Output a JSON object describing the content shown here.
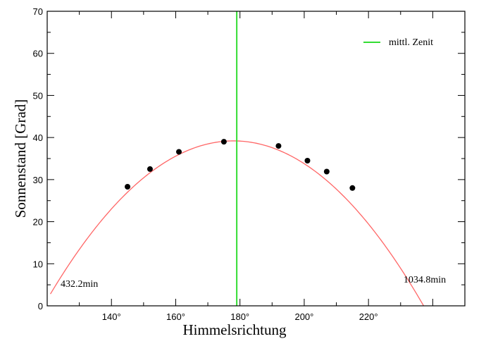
{
  "chart_data": {
    "type": "scatter",
    "xlabel": "Himmelsrichtung",
    "ylabel": "Sonnenstand [Grad]",
    "xlim": [
      120,
      250
    ],
    "ylim": [
      0,
      70
    ],
    "x_ticks": [
      140,
      160,
      180,
      200,
      220
    ],
    "x_tick_labels": [
      "140°",
      "160°",
      "180°",
      "200°",
      "220°"
    ],
    "y_ticks": [
      0,
      10,
      20,
      30,
      40,
      50,
      60,
      70
    ],
    "y_tick_labels": [
      "0",
      "10",
      "20",
      "30",
      "40",
      "50",
      "60",
      "70"
    ],
    "grid": false,
    "legend_position": "top-right",
    "series": [
      {
        "type": "scatter",
        "color": "#000000",
        "x": [
          145,
          152,
          161,
          175,
          192,
          201,
          207,
          215
        ],
        "y": [
          28.3,
          32.5,
          36.6,
          39.0,
          38.0,
          34.5,
          31.9,
          28.0
        ]
      },
      {
        "type": "line",
        "color": "#ff6666",
        "vertex": [
          178,
          39.2
        ],
        "curvature": 0.0112,
        "x_range": [
          121,
          245
        ]
      },
      {
        "name": "mittl. Zenit",
        "type": "vline",
        "color": "#33dd33",
        "x": 179
      }
    ],
    "annotations": [
      {
        "text": "432.2min",
        "x": 130,
        "y": 4.5
      },
      {
        "text": "1034.8min",
        "x": 237.5,
        "y": 5.5
      }
    ]
  }
}
